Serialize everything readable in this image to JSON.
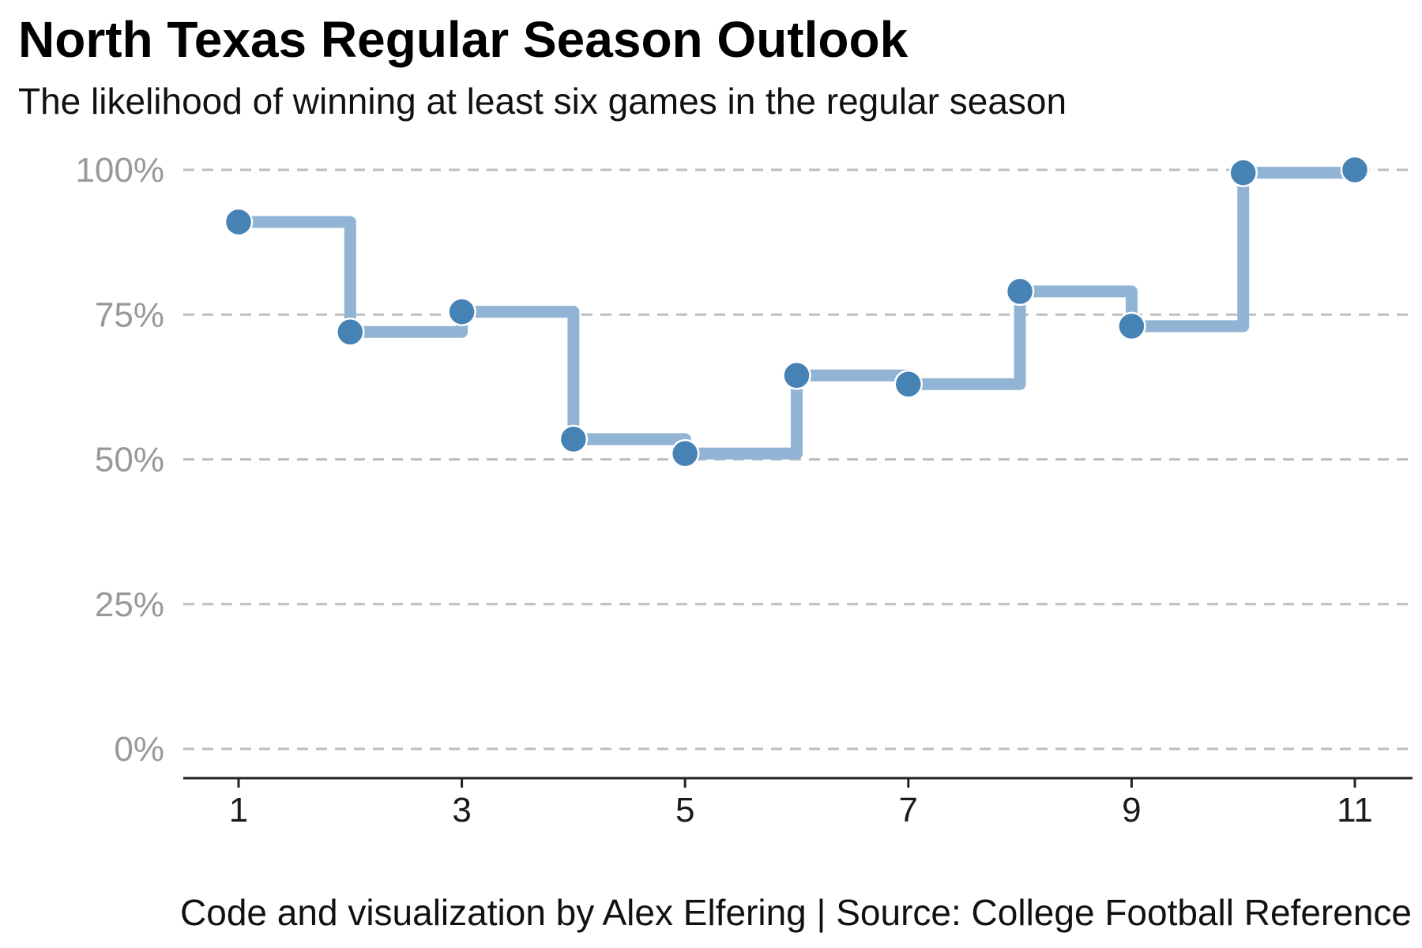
{
  "title": "North Texas Regular Season Outlook",
  "subtitle": "The likelihood of winning at least six games in the regular season",
  "caption": "Code and visualization by Alex Elfering | Source: College Football Reference",
  "colors": {
    "point": "#4682b4",
    "step_line": "#92b4d4",
    "grid": "#bebebe",
    "y_tick_text": "#999999",
    "x_tick_text": "#1a1a1a",
    "x_axis_line": "#222222"
  },
  "chart_data": {
    "type": "line",
    "style": "step-after",
    "x": [
      1,
      2,
      3,
      4,
      5,
      6,
      7,
      8,
      9,
      10,
      11
    ],
    "y": [
      91,
      72,
      75.5,
      53.5,
      51,
      64.5,
      63,
      79,
      73,
      99.5,
      100
    ],
    "x_ticks": [
      1,
      3,
      5,
      7,
      9,
      11
    ],
    "x_tick_labels": [
      "1",
      "3",
      "5",
      "7",
      "9",
      "11"
    ],
    "y_ticks": [
      0,
      25,
      50,
      75,
      100
    ],
    "y_tick_labels": [
      "0%",
      "25%",
      "50%",
      "75%",
      "100%"
    ],
    "xlim": [
      0.5,
      11.5
    ],
    "ylim": [
      0,
      100
    ],
    "grid": "horizontal-dashed",
    "legend": "none",
    "title": "North Texas Regular Season Outlook",
    "subtitle": "The likelihood of winning at least six games in the regular season",
    "xlabel": "",
    "ylabel": ""
  }
}
